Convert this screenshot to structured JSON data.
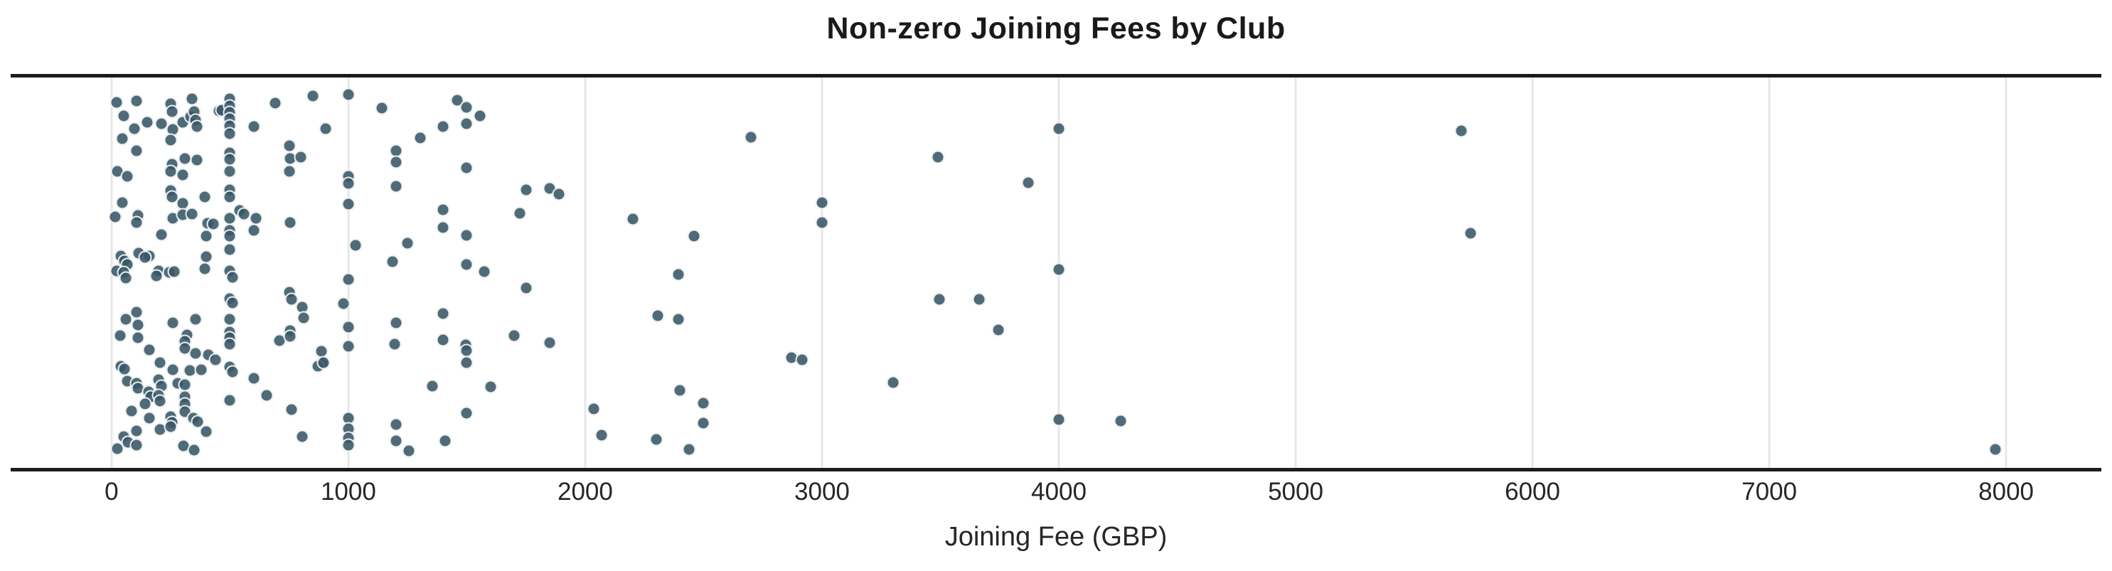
{
  "title": "Non-zero Joining Fees by Club",
  "colors": {
    "marker_fill": "rgba(56,86,101,0.88)",
    "marker_fill_hex": "#4d6976",
    "marker_edge": "rgba(255,255,255,0.9)",
    "gridline": "#e7e7ea",
    "spine": "#1c1c1c",
    "title_text": "#1a1a1a",
    "tick_text": "#262626",
    "background": "#ffffff"
  },
  "chart_data": {
    "type": "scatter",
    "subtype": "strip-plot-jittered",
    "title": "Non-zero Joining Fees by Club",
    "xlabel": "Joining Fee (GBP)",
    "ylabel": "",
    "legend": false,
    "grid": true,
    "xlim": [
      -381,
      8357
    ],
    "xticks": [
      0,
      1000,
      2000,
      3000,
      4000,
      5000,
      6000,
      7000,
      8000
    ],
    "xtick_labels": [
      "0",
      "1000",
      "2000",
      "3000",
      "4000",
      "5000",
      "6000",
      "7000",
      "8000"
    ],
    "y_jitter_note": "y value is random jitter only (0=top of band, 1=bottom); x is Joining Fee in GBP",
    "points": [
      [
        20,
        0.063
      ],
      [
        105,
        0.061
      ],
      [
        50,
        0.099
      ],
      [
        150,
        0.114
      ],
      [
        210,
        0.119
      ],
      [
        95,
        0.132
      ],
      [
        45,
        0.157
      ],
      [
        105,
        0.187
      ],
      [
        25,
        0.24
      ],
      [
        65,
        0.254
      ],
      [
        45,
        0.321
      ],
      [
        15,
        0.357
      ],
      [
        110,
        0.353
      ],
      [
        105,
        0.371
      ],
      [
        210,
        0.402
      ],
      [
        40,
        0.458
      ],
      [
        115,
        0.45
      ],
      [
        160,
        0.458
      ],
      [
        140,
        0.461
      ],
      [
        55,
        0.47
      ],
      [
        65,
        0.479
      ],
      [
        250,
        0.067
      ],
      [
        255,
        0.088
      ],
      [
        260,
        0.133
      ],
      [
        250,
        0.16
      ],
      [
        255,
        0.223
      ],
      [
        250,
        0.241
      ],
      [
        300,
        0.115
      ],
      [
        310,
        0.207
      ],
      [
        300,
        0.25
      ],
      [
        360,
        0.211
      ],
      [
        335,
        0.101
      ],
      [
        350,
        0.088
      ],
      [
        355,
        0.11
      ],
      [
        360,
        0.126
      ],
      [
        340,
        0.054
      ],
      [
        250,
        0.29
      ],
      [
        255,
        0.306
      ],
      [
        300,
        0.323
      ],
      [
        260,
        0.36
      ],
      [
        300,
        0.351
      ],
      [
        340,
        0.35
      ],
      [
        395,
        0.306
      ],
      [
        405,
        0.373
      ],
      [
        430,
        0.375
      ],
      [
        400,
        0.407
      ],
      [
        400,
        0.459
      ],
      [
        455,
        0.086
      ],
      [
        465,
        0.083
      ],
      [
        500,
        0.054
      ],
      [
        500,
        0.072
      ],
      [
        500,
        0.09
      ],
      [
        500,
        0.106
      ],
      [
        500,
        0.124
      ],
      [
        500,
        0.144
      ],
      [
        500,
        0.193
      ],
      [
        500,
        0.209
      ],
      [
        500,
        0.241
      ],
      [
        500,
        0.288
      ],
      [
        500,
        0.306
      ],
      [
        500,
        0.36
      ],
      [
        500,
        0.391
      ],
      [
        500,
        0.407
      ],
      [
        500,
        0.441
      ],
      [
        540,
        0.341
      ],
      [
        560,
        0.35
      ],
      [
        600,
        0.126
      ],
      [
        610,
        0.36
      ],
      [
        600,
        0.391
      ],
      [
        690,
        0.065
      ],
      [
        750,
        0.175
      ],
      [
        755,
        0.207
      ],
      [
        800,
        0.204
      ],
      [
        750,
        0.241
      ],
      [
        755,
        0.371
      ],
      [
        850,
        0.047
      ],
      [
        905,
        0.132
      ],
      [
        1000,
        0.043
      ],
      [
        1000,
        0.254
      ],
      [
        1000,
        0.272
      ],
      [
        1000,
        0.324
      ],
      [
        1030,
        0.429
      ],
      [
        1140,
        0.079
      ],
      [
        1200,
        0.187
      ],
      [
        1200,
        0.216
      ],
      [
        1185,
        0.472
      ],
      [
        20,
        0.495
      ],
      [
        50,
        0.499
      ],
      [
        60,
        0.514
      ],
      [
        200,
        0.495
      ],
      [
        190,
        0.508
      ],
      [
        245,
        0.499
      ],
      [
        265,
        0.497
      ],
      [
        395,
        0.49
      ],
      [
        500,
        0.495
      ],
      [
        510,
        0.512
      ],
      [
        500,
        0.566
      ],
      [
        510,
        0.577
      ],
      [
        500,
        0.62
      ],
      [
        500,
        0.652
      ],
      [
        500,
        0.667
      ],
      [
        500,
        0.683
      ],
      [
        500,
        0.742
      ],
      [
        510,
        0.755
      ],
      [
        500,
        0.827
      ],
      [
        60,
        0.62
      ],
      [
        105,
        0.602
      ],
      [
        110,
        0.634
      ],
      [
        35,
        0.661
      ],
      [
        110,
        0.667
      ],
      [
        160,
        0.697
      ],
      [
        260,
        0.629
      ],
      [
        355,
        0.62
      ],
      [
        320,
        0.659
      ],
      [
        310,
        0.676
      ],
      [
        310,
        0.694
      ],
      [
        355,
        0.706
      ],
      [
        410,
        0.71
      ],
      [
        440,
        0.724
      ],
      [
        205,
        0.73
      ],
      [
        40,
        0.74
      ],
      [
        55,
        0.746
      ],
      [
        260,
        0.748
      ],
      [
        330,
        0.751
      ],
      [
        380,
        0.748
      ],
      [
        65,
        0.778
      ],
      [
        105,
        0.784
      ],
      [
        110,
        0.796
      ],
      [
        200,
        0.775
      ],
      [
        210,
        0.791
      ],
      [
        280,
        0.784
      ],
      [
        310,
        0.787
      ],
      [
        155,
        0.805
      ],
      [
        165,
        0.818
      ],
      [
        200,
        0.814
      ],
      [
        205,
        0.829
      ],
      [
        140,
        0.836
      ],
      [
        310,
        0.818
      ],
      [
        310,
        0.836
      ],
      [
        85,
        0.854
      ],
      [
        310,
        0.856
      ],
      [
        160,
        0.872
      ],
      [
        250,
        0.868
      ],
      [
        255,
        0.883
      ],
      [
        345,
        0.872
      ],
      [
        365,
        0.881
      ],
      [
        205,
        0.901
      ],
      [
        250,
        0.895
      ],
      [
        105,
        0.905
      ],
      [
        50,
        0.919
      ],
      [
        70,
        0.935
      ],
      [
        25,
        0.95
      ],
      [
        105,
        0.941
      ],
      [
        305,
        0.944
      ],
      [
        350,
        0.955
      ],
      [
        400,
        0.908
      ],
      [
        600,
        0.77
      ],
      [
        655,
        0.814
      ],
      [
        710,
        0.674
      ],
      [
        755,
        0.649
      ],
      [
        755,
        0.663
      ],
      [
        750,
        0.55
      ],
      [
        760,
        0.568
      ],
      [
        805,
        0.589
      ],
      [
        810,
        0.616
      ],
      [
        760,
        0.851
      ],
      [
        805,
        0.919
      ],
      [
        885,
        0.701
      ],
      [
        890,
        0.733
      ],
      [
        870,
        0.739
      ],
      [
        895,
        0.73
      ],
      [
        980,
        0.58
      ],
      [
        1000,
        0.517
      ],
      [
        1000,
        0.64
      ],
      [
        1000,
        0.688
      ],
      [
        1000,
        0.872
      ],
      [
        1000,
        0.899
      ],
      [
        1000,
        0.923
      ],
      [
        1000,
        0.941
      ],
      [
        1195,
        0.683
      ],
      [
        1460,
        0.059
      ],
      [
        1500,
        0.077
      ],
      [
        1555,
        0.099
      ],
      [
        1500,
        0.119
      ],
      [
        1400,
        0.126
      ],
      [
        1305,
        0.155
      ],
      [
        1500,
        0.232
      ],
      [
        1200,
        0.279
      ],
      [
        1400,
        0.339
      ],
      [
        1750,
        0.287
      ],
      [
        1850,
        0.285
      ],
      [
        1890,
        0.299
      ],
      [
        1725,
        0.348
      ],
      [
        1400,
        0.384
      ],
      [
        1500,
        0.404
      ],
      [
        1250,
        0.425
      ],
      [
        1500,
        0.479
      ],
      [
        1575,
        0.497
      ],
      [
        2200,
        0.362
      ],
      [
        1750,
        0.539
      ],
      [
        1400,
        0.604
      ],
      [
        1200,
        0.629
      ],
      [
        1400,
        0.672
      ],
      [
        1495,
        0.685
      ],
      [
        1500,
        0.699
      ],
      [
        1500,
        0.73
      ],
      [
        1700,
        0.661
      ],
      [
        1850,
        0.679
      ],
      [
        1355,
        0.791
      ],
      [
        1600,
        0.793
      ],
      [
        1500,
        0.859
      ],
      [
        1200,
        0.888
      ],
      [
        1200,
        0.93
      ],
      [
        1255,
        0.957
      ],
      [
        1410,
        0.93
      ],
      [
        2035,
        0.849
      ],
      [
        2070,
        0.917
      ],
      [
        2305,
        0.611
      ],
      [
        2395,
        0.62
      ],
      [
        2395,
        0.505
      ],
      [
        2400,
        0.802
      ],
      [
        2300,
        0.928
      ],
      [
        2440,
        0.953
      ],
      [
        2700,
        0.153
      ],
      [
        3490,
        0.204
      ],
      [
        3000,
        0.321
      ],
      [
        3000,
        0.371
      ],
      [
        2460,
        0.407
      ],
      [
        3495,
        0.568
      ],
      [
        3665,
        0.568
      ],
      [
        3745,
        0.647
      ],
      [
        2870,
        0.717
      ],
      [
        2915,
        0.724
      ],
      [
        3300,
        0.782
      ],
      [
        2500,
        0.834
      ],
      [
        2500,
        0.885
      ],
      [
        4000,
        0.132
      ],
      [
        3870,
        0.27
      ],
      [
        4000,
        0.492
      ],
      [
        4000,
        0.876
      ],
      [
        4260,
        0.879
      ],
      [
        5700,
        0.137
      ],
      [
        5740,
        0.398
      ],
      [
        7955,
        0.953
      ]
    ]
  }
}
